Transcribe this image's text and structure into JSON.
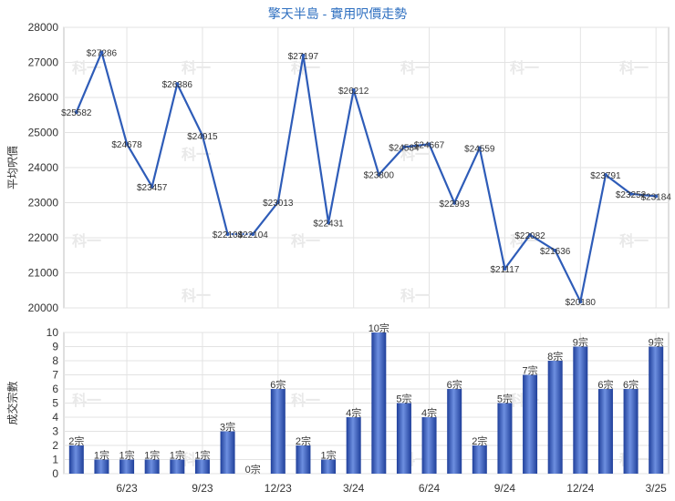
{
  "chart_data": [
    {
      "type": "line",
      "title": "擎天半島 - 實用呎價走勢",
      "ylabel": "平均呎價",
      "ylim": [
        20000,
        28000
      ],
      "yticks": [
        20000,
        21000,
        22000,
        23000,
        24000,
        25000,
        26000,
        27000,
        28000
      ],
      "grid": true,
      "x": [
        "4/23",
        "5/23",
        "6/23",
        "7/23",
        "8/23",
        "9/23",
        "10/23",
        "11/23",
        "12/23",
        "1/24",
        "2/24",
        "3/24",
        "4/24",
        "5/24",
        "6/24",
        "7/24",
        "8/24",
        "9/24",
        "10/24",
        "11/24",
        "12/24",
        "1/25",
        "2/25",
        "3/25"
      ],
      "series": [
        {
          "values": [
            25582,
            27286,
            24678,
            23457,
            26386,
            24915,
            22104,
            22104,
            23013,
            27197,
            22431,
            26212,
            23800,
            24584,
            24667,
            22993,
            24559,
            21117,
            22082,
            21636,
            20180,
            23791,
            23252,
            23184
          ],
          "labels": [
            "$25582",
            "$27286",
            "$24678",
            "$23457",
            "$26386",
            "$24915",
            "$22104",
            "$22104",
            "$23013",
            "$27197",
            "$22431",
            "$26212",
            "$23800",
            "$24584",
            "$24667",
            "$22993",
            "$24559",
            "$21117",
            "$22082",
            "$21636",
            "$20180",
            "$23791",
            "$23252",
            "$23184"
          ],
          "dashed_after_index": [
            6
          ],
          "color": "#2e5cb8"
        }
      ]
    },
    {
      "type": "bar",
      "ylabel": "成交宗數",
      "ylim": [
        0,
        10
      ],
      "yticks": [
        0,
        1,
        2,
        3,
        4,
        5,
        6,
        7,
        8,
        9,
        10
      ],
      "grid": true,
      "categories": [
        "4/23",
        "5/23",
        "6/23",
        "7/23",
        "8/23",
        "9/23",
        "10/23",
        "11/23",
        "12/23",
        "1/24",
        "2/24",
        "3/24",
        "4/24",
        "5/24",
        "6/24",
        "7/24",
        "8/24",
        "9/24",
        "10/24",
        "11/24",
        "12/24",
        "1/25",
        "2/25",
        "3/25"
      ],
      "tick_labels": [
        "",
        "",
        "6/23",
        "",
        "",
        "9/23",
        "",
        "",
        "12/23",
        "",
        "",
        "3/24",
        "",
        "",
        "6/24",
        "",
        "",
        "9/24",
        "",
        "",
        "12/24",
        "",
        "",
        "3/25"
      ],
      "values": [
        2,
        1,
        1,
        1,
        1,
        1,
        3,
        0,
        6,
        2,
        1,
        4,
        10,
        5,
        4,
        6,
        2,
        5,
        7,
        8,
        9,
        6,
        6,
        9
      ],
      "labels": [
        "2宗",
        "1宗",
        "1宗",
        "1宗",
        "1宗",
        "1宗",
        "3宗",
        "0宗",
        "6宗",
        "2宗",
        "1宗",
        "4宗",
        "10宗",
        "5宗",
        "4宗",
        "6宗",
        "2宗",
        "5宗",
        "7宗",
        "8宗",
        "9宗",
        "6宗",
        "6宗",
        "9宗"
      ],
      "color": "#3a63c4"
    }
  ],
  "watermark": "科一"
}
